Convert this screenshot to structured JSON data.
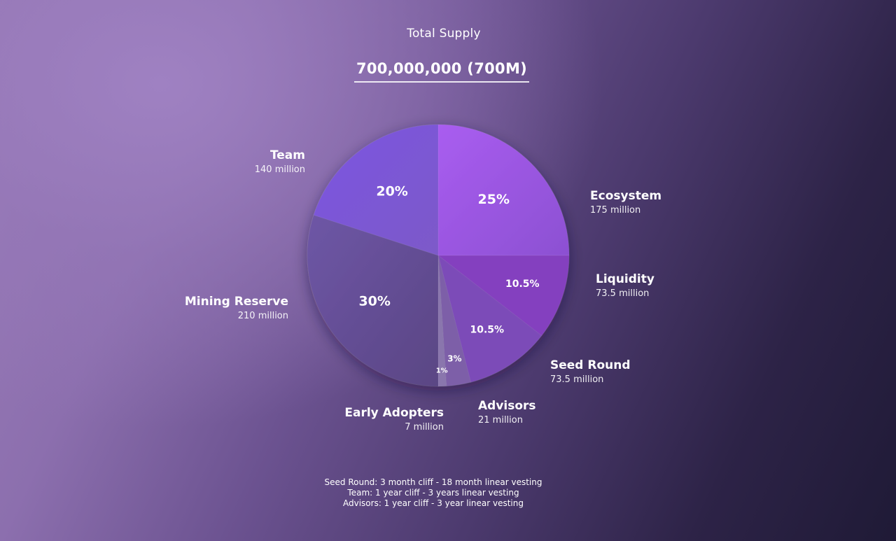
{
  "chart_data": {
    "type": "pie",
    "title": "Total Supply",
    "subtitle": "700,000,000 (700M)",
    "slices": [
      {
        "name": "Ecosystem",
        "percent": 25,
        "percent_label": "25%",
        "amount_label": "175 million",
        "color": "#9c58df"
      },
      {
        "name": "Liquidity",
        "percent": 10.5,
        "percent_label": "10.5%",
        "amount_label": "73.5 million",
        "color": "#8440bf"
      },
      {
        "name": "Seed Round",
        "percent": 10.5,
        "percent_label": "10.5%",
        "amount_label": "73.5 million",
        "color": "#7c4cb8"
      },
      {
        "name": "Advisors",
        "percent": 3,
        "percent_label": "3%",
        "amount_label": "21 million",
        "color": "#7d5fa8"
      },
      {
        "name": "Early Adopters",
        "percent": 1,
        "percent_label": "1%",
        "amount_label": "7 million",
        "color": "#8a76ad"
      },
      {
        "name": "Mining Reserve",
        "percent": 30,
        "percent_label": "30%",
        "amount_label": "210 million",
        "color": "#6a5499"
      },
      {
        "name": "Team",
        "percent": 20,
        "percent_label": "20%",
        "amount_label": "140 million",
        "color": "#7e5ddc"
      }
    ]
  },
  "notes": [
    "Seed Round:  3 month cliff - 18 month linear vesting",
    "Team:  1 year cliff - 3 years linear vesting",
    "Advisors: 1 year cliff - 3 year linear vesting"
  ]
}
